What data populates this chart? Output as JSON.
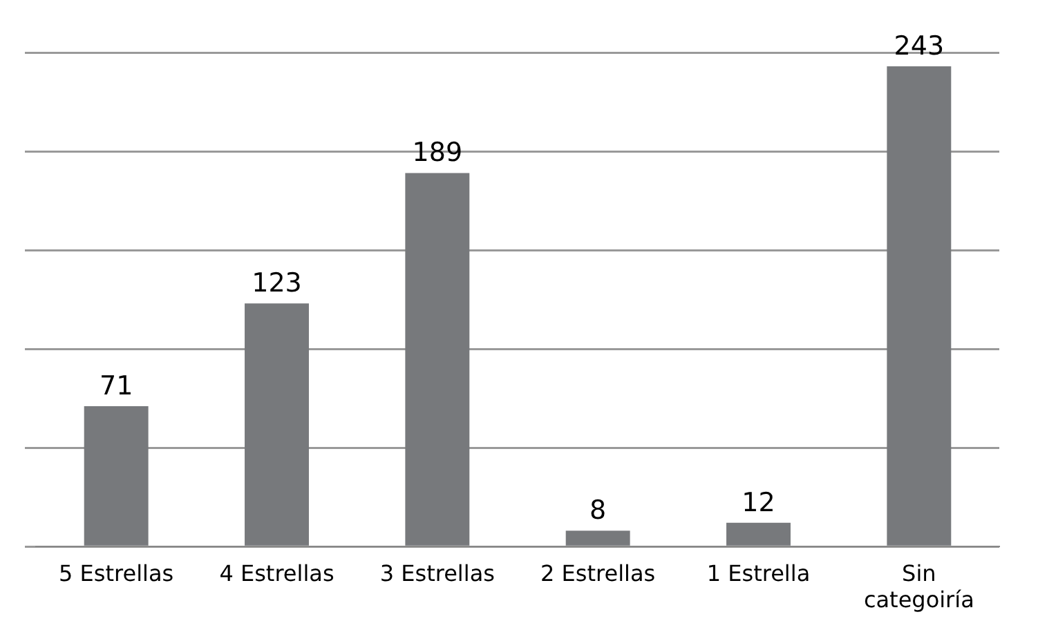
{
  "chart_data": {
    "type": "bar",
    "categories": [
      "5 Estrellas",
      "4 Estrellas",
      "3 Estrellas",
      "2 Estrellas",
      "1 Estrella",
      "Sin categoiría"
    ],
    "values": [
      71,
      123,
      189,
      8,
      12,
      243
    ],
    "color": "#77797c",
    "grid": "y",
    "data_labels": true,
    "tick_labels": "x",
    "legend": false
  }
}
